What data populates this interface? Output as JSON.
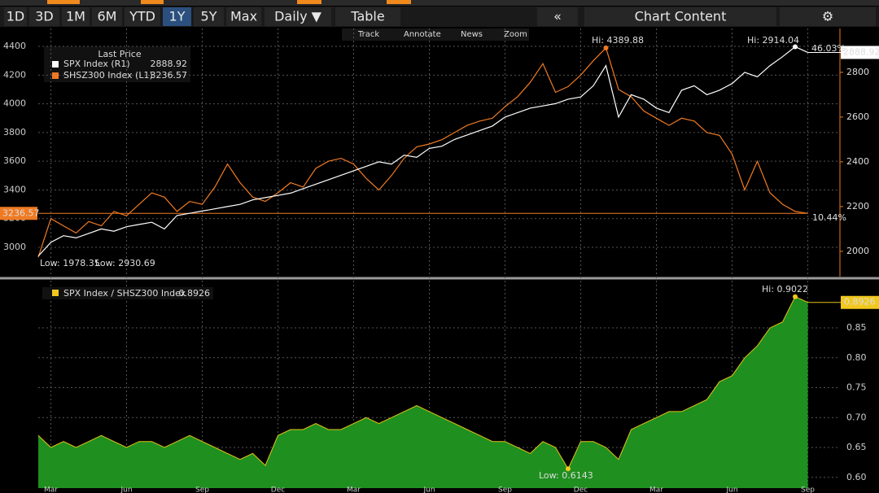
{
  "toolbar": [
    "1D",
    "3D",
    "1M",
    "6M",
    "YTD",
    "1Y",
    "5Y",
    "Max",
    "Daily ▼",
    "Table",
    "«",
    "Chart Content",
    "⚙"
  ],
  "mini_toolbar": [
    "Track",
    "Annotate",
    "News",
    "Zoom"
  ],
  "chart_data": [
    {
      "type": "line",
      "legend_title": "Last Price",
      "series": [
        {
          "name": "SPX Index  (R1)",
          "color": "#ffffff",
          "axis": "y2",
          "values": [
            1978.35,
            2040,
            2070,
            2060,
            2080,
            2100,
            2090,
            2110,
            2120,
            2130,
            2100,
            2160,
            2170,
            2180,
            2190,
            2200,
            2210,
            2230,
            2240,
            2250,
            2260,
            2280,
            2300,
            2320,
            2340,
            2360,
            2380,
            2400,
            2390,
            2430,
            2420,
            2460,
            2470,
            2500,
            2520,
            2540,
            2560,
            2600,
            2620,
            2640,
            2650,
            2660,
            2680,
            2690,
            2740,
            2830,
            2600,
            2700,
            2680,
            2640,
            2620,
            2720,
            2740,
            2700,
            2720,
            2750,
            2800,
            2780,
            2830,
            2870,
            2914.04,
            2888.92
          ]
        },
        {
          "name": "SHSZ300 Index  (L1)",
          "color": "#f07a22",
          "values": [
            2930.69,
            3200,
            3150,
            3100,
            3180,
            3150,
            3250,
            3220,
            3300,
            3380,
            3350,
            3250,
            3320,
            3300,
            3420,
            3580,
            3450,
            3350,
            3320,
            3380,
            3450,
            3420,
            3550,
            3600,
            3620,
            3580,
            3480,
            3400,
            3500,
            3620,
            3700,
            3720,
            3750,
            3800,
            3850,
            3880,
            3900,
            3980,
            4050,
            4150,
            4280,
            4080,
            4120,
            4200,
            4300,
            4389.88,
            4100,
            4050,
            3950,
            3900,
            3850,
            3900,
            3880,
            3800,
            3780,
            3650,
            3400,
            3600,
            3380,
            3300,
            3250,
            3236.57
          ]
        }
      ],
      "ylim": [
        2796,
        4525
      ],
      "yticks": [
        3000,
        3200,
        3400,
        3600,
        3800,
        4000,
        4200,
        4400
      ],
      "y2lim": [
        1887,
        2996
      ],
      "y2ticks": [
        2000,
        2200,
        2400,
        2600,
        2800
      ],
      "annotations": [
        "Hi: 4389.88",
        "Hi: 2914.04",
        "46.03%",
        "10.44%",
        "Low: 1978.35",
        "Low: 2930.69"
      ]
    },
    {
      "type": "area",
      "categories": [
        null,
        "Mar",
        null,
        null,
        null,
        null,
        null,
        "Jun",
        null,
        null,
        null,
        null,
        null,
        "Sep",
        null,
        null,
        null,
        null,
        null,
        "Dec",
        null,
        null,
        null,
        null,
        null,
        "Mar",
        null,
        null,
        null,
        null,
        null,
        "Jun",
        null,
        null,
        null,
        null,
        null,
        "Sep",
        null,
        null,
        null,
        null,
        null,
        "Dec",
        null,
        null,
        null,
        null,
        null,
        "Mar",
        null,
        null,
        null,
        null,
        null,
        "Jun",
        null,
        null,
        null,
        null,
        null,
        "Sep"
      ],
      "series": [
        {
          "name": "SPX Index / SHSZ300 Index",
          "color": "#1f8f1f",
          "values": [
            0.67,
            0.65,
            0.66,
            0.65,
            0.66,
            0.67,
            0.66,
            0.65,
            0.66,
            0.66,
            0.65,
            0.66,
            0.67,
            0.66,
            0.65,
            0.64,
            0.63,
            0.64,
            0.62,
            0.67,
            0.68,
            0.68,
            0.69,
            0.68,
            0.68,
            0.69,
            0.7,
            0.69,
            0.7,
            0.71,
            0.72,
            0.71,
            0.7,
            0.69,
            0.68,
            0.67,
            0.66,
            0.66,
            0.65,
            0.64,
            0.66,
            0.65,
            0.6143,
            0.66,
            0.66,
            0.65,
            0.63,
            0.68,
            0.69,
            0.7,
            0.71,
            0.71,
            0.72,
            0.73,
            0.76,
            0.77,
            0.8,
            0.82,
            0.85,
            0.86,
            0.9022,
            0.8926
          ]
        }
      ],
      "ylim": [
        0.582,
        0.929
      ],
      "yticks": [
        {
          "value": 0.6,
          "label": "0.60"
        },
        {
          "value": 0.65,
          "label": "0.65"
        },
        {
          "value": 0.7,
          "label": "0.70"
        },
        {
          "value": 0.75,
          "label": "0.75"
        },
        {
          "value": 0.8,
          "label": "0.80"
        },
        {
          "value": 0.85,
          "label": "0.85"
        }
      ],
      "annotations": [
        "Hi: 0.9022",
        "Low: 0.6143"
      ]
    }
  ]
}
